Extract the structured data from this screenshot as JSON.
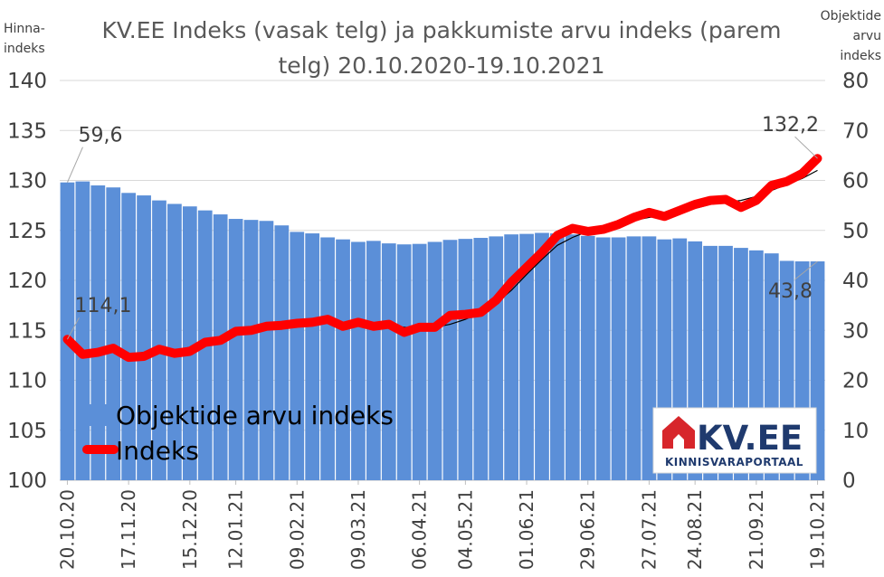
{
  "chart_data": {
    "type": "bar+line",
    "title_lines": [
      "KV.EE Indeks (vasak telg) ja pakkumiste arvu indeks (parem",
      "telg) 20.10.2020-19.10.2021"
    ],
    "y_left_title": [
      "Hinna-",
      "indeks"
    ],
    "y_right_title": [
      "Objektide",
      "arvu",
      "indeks"
    ],
    "y_left_range": [
      100,
      140
    ],
    "y_left_ticks": [
      "100",
      "105",
      "110",
      "115",
      "120",
      "125",
      "130",
      "135",
      "140"
    ],
    "y_right_range": [
      0,
      80
    ],
    "y_right_ticks": [
      "0",
      "10",
      "20",
      "30",
      "40",
      "50",
      "60",
      "70",
      "80"
    ],
    "x_tick_labels": [
      "20.10.20",
      "17.11.20",
      "15.12.20",
      "12.01.21",
      "09.02.21",
      "09.03.21",
      "06.04.21",
      "04.05.21",
      "01.06.21",
      "29.06.21",
      "27.07.21",
      "24.08.21",
      "21.09.21",
      "19.10.21"
    ],
    "grid": true,
    "series": [
      {
        "name": "Objektide arvu indeks",
        "axis": "right",
        "kind": "bar",
        "color": "#5b8fd8",
        "values": [
          59.6,
          59.8,
          59.0,
          58.6,
          57.5,
          57.0,
          56.0,
          55.3,
          54.8,
          54.0,
          53.2,
          52.3,
          52.1,
          51.9,
          51.0,
          49.7,
          49.4,
          48.6,
          48.2,
          47.7,
          47.9,
          47.4,
          47.2,
          47.3,
          47.7,
          48.1,
          48.3,
          48.5,
          48.8,
          49.2,
          49.3,
          49.5,
          49.4,
          49.2,
          48.9,
          48.6,
          48.6,
          48.8,
          48.8,
          48.2,
          48.4,
          47.8,
          46.9,
          46.9,
          46.5,
          46.0,
          45.4,
          43.9,
          43.8,
          43.8
        ]
      },
      {
        "name": "Indeks",
        "axis": "left",
        "kind": "line",
        "color": "#ff0000",
        "values": [
          114.1,
          112.6,
          112.8,
          113.2,
          112.3,
          112.4,
          113.1,
          112.7,
          112.9,
          113.8,
          114.0,
          114.9,
          115.0,
          115.4,
          115.5,
          115.7,
          115.8,
          116.1,
          115.4,
          115.8,
          115.4,
          115.6,
          114.8,
          115.3,
          115.3,
          116.5,
          116.6,
          116.8,
          118.0,
          119.8,
          121.3,
          122.8,
          124.5,
          125.2,
          124.9,
          125.1,
          125.6,
          126.3,
          126.8,
          126.4,
          127.0,
          127.6,
          128.0,
          128.1,
          127.3,
          128.0,
          129.5,
          129.9,
          130.7,
          132.2
        ],
        "trend_values": [
          null,
          null,
          null,
          null,
          112.6,
          112.8,
          112.9,
          113.0,
          113.3,
          113.7,
          114.1,
          114.5,
          114.8,
          115.2,
          115.4,
          115.6,
          115.8,
          115.9,
          115.8,
          115.7,
          115.6,
          115.5,
          115.3,
          115.2,
          115.3,
          115.6,
          116.1,
          116.8,
          117.7,
          119.0,
          120.6,
          122.1,
          123.5,
          124.3,
          124.9,
          125.2,
          125.6,
          126.0,
          126.3,
          126.5,
          126.8,
          127.2,
          127.6,
          127.8,
          128.0,
          128.4,
          129.0,
          129.6,
          130.2,
          131.0
        ],
        "trend_color": "#000000"
      }
    ],
    "annotations": [
      {
        "text": "59,6",
        "axis": "right",
        "index": 0,
        "value": 59.6
      },
      {
        "text": "114,1",
        "axis": "left",
        "index": 0,
        "value": 114.1
      },
      {
        "text": "132,2",
        "axis": "left",
        "index": 49,
        "value": 132.2
      },
      {
        "text": "43,8",
        "axis": "right",
        "index": 49,
        "value": 43.8
      }
    ],
    "legend_position": "bottom-left"
  },
  "logo": {
    "main": "KV.EE",
    "sub": "KINNISVARAPORTAAL",
    "colors": {
      "red": "#d7262b",
      "navy": "#1f3a6e"
    }
  }
}
